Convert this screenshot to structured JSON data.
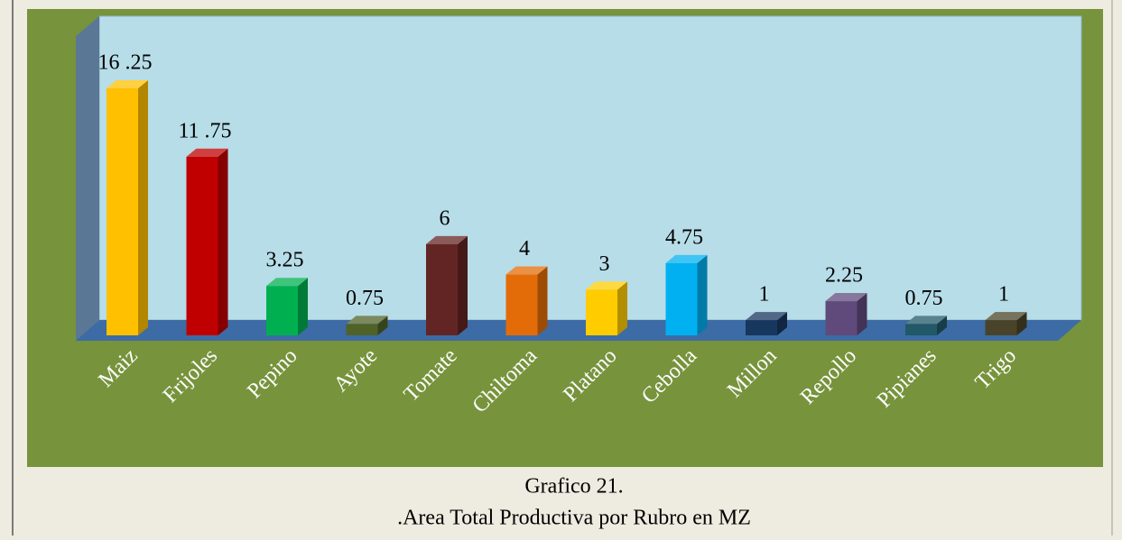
{
  "chart_data": {
    "type": "bar3d",
    "title": "Grafico 21.",
    "subtitle": ".Area Total Productiva por Rubro en MZ",
    "categories": [
      "Maiz",
      "Frijoles",
      "Pepino",
      "Ayote",
      "Tomate",
      "Chiltoma",
      "Platano",
      "Cebolla",
      "Millon",
      "Repollo",
      "Pipianes",
      "Trigo"
    ],
    "values": [
      16.25,
      11.75,
      3.25,
      0.75,
      6,
      4,
      3,
      4.75,
      1,
      2.25,
      0.75,
      1
    ],
    "value_labels": [
      "16 .25",
      "11 .75",
      "3.25",
      "0.75",
      "6",
      "4",
      "3",
      "4.75",
      "1",
      "2.25",
      "0.75",
      "1"
    ],
    "colors": [
      "#ffc000",
      "#c00000",
      "#00b050",
      "#4f6228",
      "#632523",
      "#e36c09",
      "#ffcc00",
      "#00b0f0",
      "#17375e",
      "#604a7b",
      "#215968",
      "#494429"
    ]
  }
}
